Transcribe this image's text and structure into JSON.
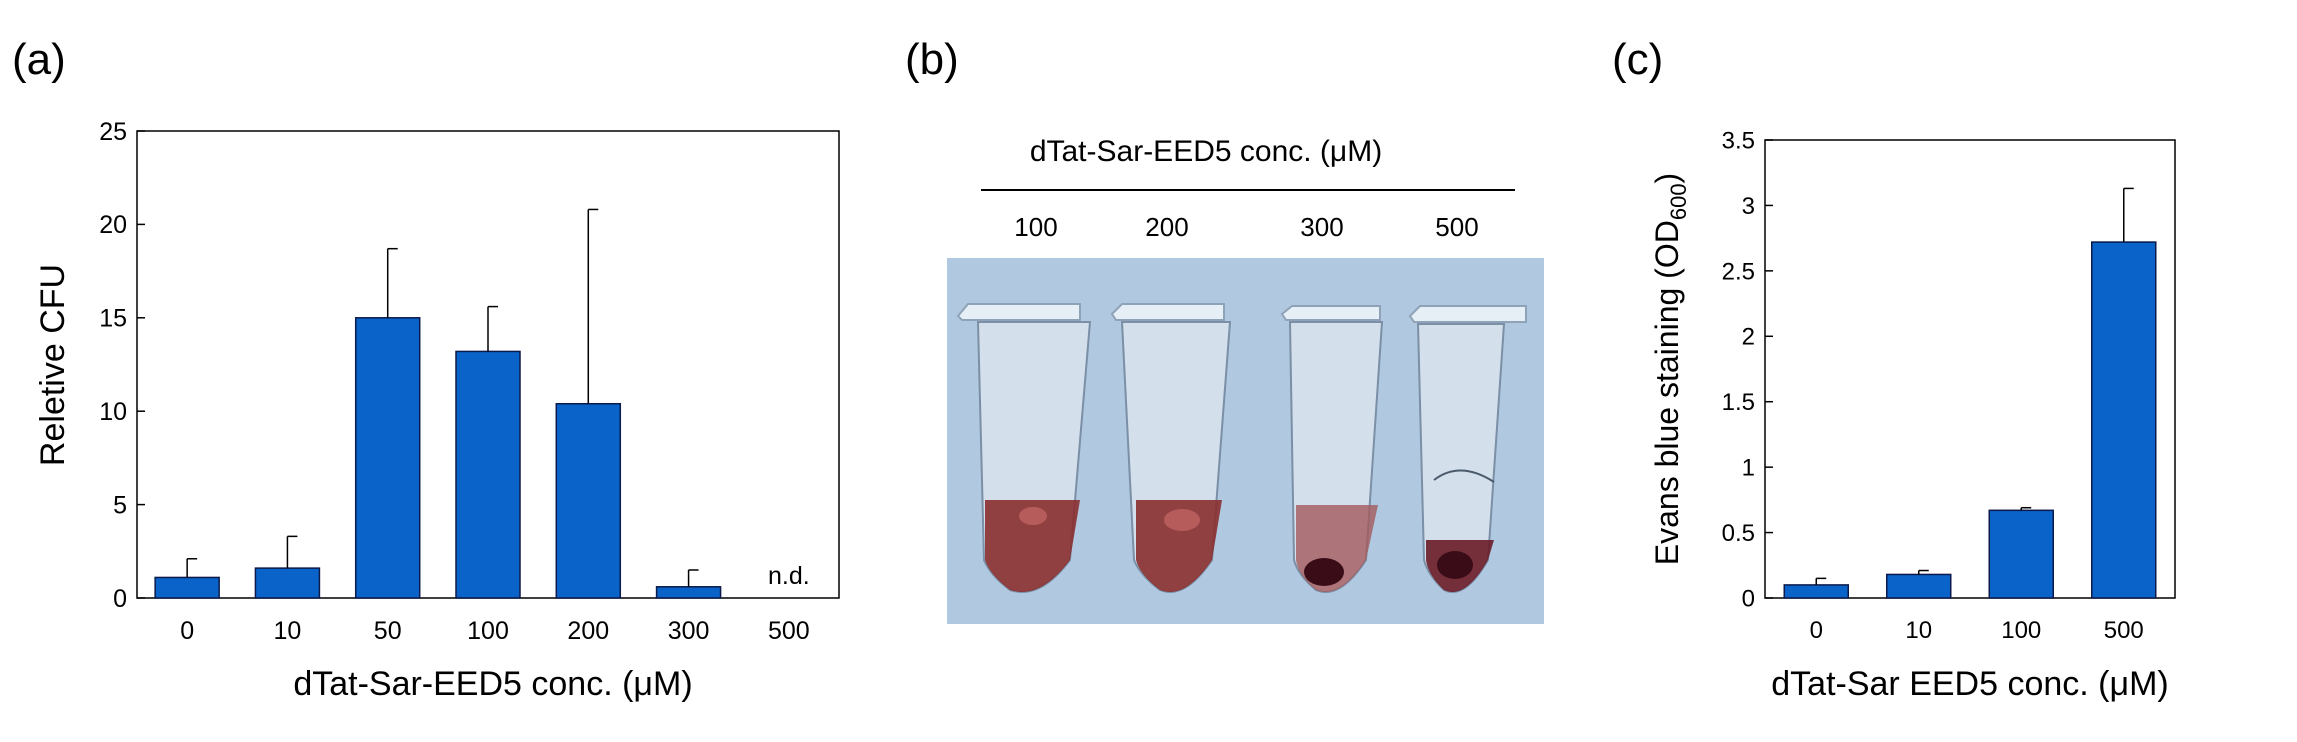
{
  "panels": {
    "a": {
      "label": "(a)"
    },
    "b": {
      "label": "(b)",
      "header": "dTat-Sar-EED5 conc. (μM)",
      "tube_labels": [
        "100",
        "200",
        "300",
        "500"
      ]
    },
    "c": {
      "label": "(c)"
    }
  },
  "colors": {
    "bar": "#0a63c9",
    "bar_edge": "#0b1a4a",
    "photo_bg": "#b0c8e0",
    "liquid": "#8a2f2f",
    "pellet": "#3a0c18"
  },
  "chart_data": [
    {
      "type": "bar",
      "panel": "a",
      "categories": [
        "0",
        "10",
        "50",
        "100",
        "200",
        "300",
        "500"
      ],
      "values": [
        1.1,
        1.6,
        15.0,
        13.2,
        10.4,
        0.6,
        null
      ],
      "errors": [
        1.0,
        1.7,
        3.7,
        2.4,
        10.4,
        0.9,
        null
      ],
      "annotations": [
        {
          "category": "500",
          "text": "n.d."
        }
      ],
      "xlabel": "dTat-Sar-EED5 conc. (μM)",
      "ylabel": "Reletive CFU",
      "ylim": [
        0,
        25
      ],
      "yticks": [
        "0",
        "5",
        "10",
        "15",
        "20",
        "25"
      ],
      "grid": false
    },
    {
      "type": "bar",
      "panel": "c",
      "categories": [
        "0",
        "10",
        "100",
        "500"
      ],
      "values": [
        0.1,
        0.18,
        0.67,
        2.72
      ],
      "errors": [
        0.05,
        0.03,
        0.02,
        0.41
      ],
      "xlabel": "dTat-Sar EED5 conc. (μM)",
      "ylabel_main": "Evans blue staining (OD",
      "ylabel_sub": "600",
      "ylabel_end": ")",
      "ylim": [
        0,
        3.5
      ],
      "yticks": [
        "0",
        "0.5",
        "1",
        "1.5",
        "2",
        "2.5",
        "3",
        "3.5"
      ],
      "grid": false
    }
  ]
}
